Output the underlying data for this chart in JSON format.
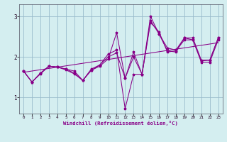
{
  "xlabel": "Windchill (Refroidissement éolien,°C)",
  "xlim": [
    -0.5,
    23.5
  ],
  "ylim": [
    0.6,
    3.3
  ],
  "yticks": [
    1,
    2,
    3
  ],
  "xticks": [
    0,
    1,
    2,
    3,
    4,
    5,
    6,
    7,
    8,
    9,
    10,
    11,
    12,
    13,
    14,
    15,
    16,
    17,
    18,
    19,
    20,
    21,
    22,
    23
  ],
  "bg_color": "#d4eef0",
  "line_color": "#880088",
  "grid_color": "#99bbcc",
  "series1_x": [
    0,
    1,
    2,
    3,
    4,
    5,
    6,
    7,
    8,
    9,
    10,
    11,
    12,
    13,
    14,
    15,
    16,
    17,
    18,
    19,
    20,
    21,
    22,
    23
  ],
  "series1_y": [
    1.65,
    1.38,
    1.58,
    1.77,
    1.75,
    1.68,
    1.58,
    1.42,
    1.67,
    1.77,
    1.95,
    2.6,
    1.47,
    2.12,
    1.57,
    2.85,
    2.62,
    2.12,
    2.15,
    2.42,
    2.42,
    1.87,
    1.87,
    2.42
  ],
  "series2_x": [
    0,
    1,
    2,
    3,
    4,
    5,
    6,
    7,
    8,
    9,
    10,
    11,
    12,
    13,
    14,
    15,
    16,
    17,
    18,
    19,
    20,
    21,
    22,
    23
  ],
  "series2_y": [
    1.65,
    1.38,
    1.6,
    1.77,
    1.75,
    1.7,
    1.6,
    1.42,
    1.7,
    1.8,
    2.07,
    2.17,
    0.72,
    1.57,
    1.57,
    3.0,
    2.57,
    2.22,
    2.17,
    2.47,
    2.47,
    1.92,
    1.92,
    2.47
  ],
  "series3_x": [
    0,
    1,
    2,
    3,
    4,
    5,
    6,
    7,
    8,
    9,
    10,
    11,
    12,
    13,
    14,
    15,
    16,
    17,
    18,
    19,
    20,
    21,
    22,
    23
  ],
  "series3_y": [
    1.65,
    1.38,
    1.6,
    1.77,
    1.75,
    1.7,
    1.65,
    1.42,
    1.67,
    1.8,
    2.0,
    2.1,
    1.47,
    2.0,
    1.57,
    2.9,
    2.57,
    2.15,
    2.12,
    2.47,
    2.42,
    1.9,
    1.92,
    2.47
  ],
  "trend_x": [
    0,
    23
  ],
  "trend_y": [
    1.62,
    2.35
  ]
}
